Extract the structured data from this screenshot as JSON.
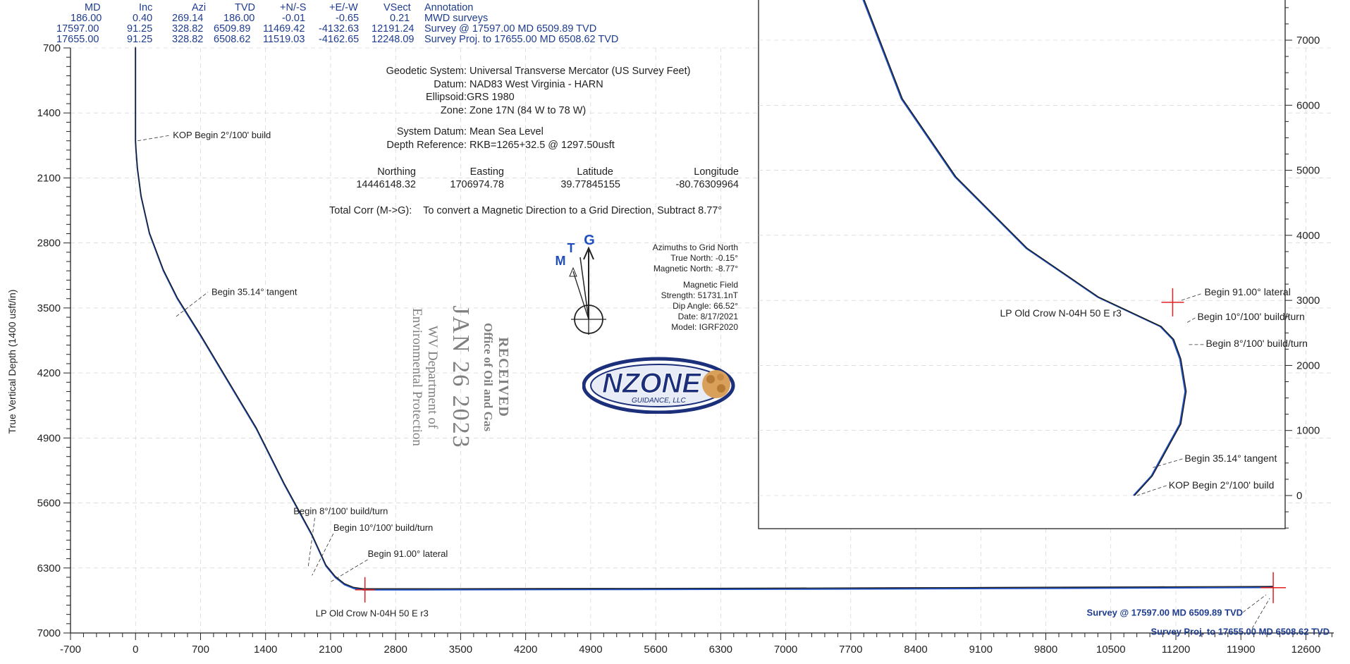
{
  "survey_table": {
    "headers": [
      "MD",
      "Inc",
      "Azi",
      "TVD",
      "+N/-S",
      "+E/-W",
      "VSect",
      "Annotation"
    ],
    "rows": [
      [
        "186.00",
        "0.40",
        "269.14",
        "186.00",
        "-0.01",
        "-0.65",
        "0.21",
        "MWD surveys"
      ],
      [
        "17597.00",
        "91.25",
        "328.82",
        "6509.89",
        "11469.42",
        "-4132.63",
        "12191.24",
        "Survey @ 17597.00 MD 6509.89 TVD"
      ],
      [
        "17655.00",
        "91.25",
        "328.82",
        "6508.62",
        "11519.03",
        "-4162.65",
        "12248.09",
        "Survey Proj. to 17655.00 MD 6508.62 TVD"
      ]
    ]
  },
  "geodetic": {
    "system_label": "Geodetic System:",
    "system": "Universal Transverse Mercator (US Survey Feet)",
    "datum_label": "Datum:",
    "datum": "NAD83 West Virginia - HARN",
    "ellipsoid_label": "Ellipsoid:",
    "ellipsoid": "GRS 1980",
    "zone_label": "Zone:",
    "zone": "Zone 17N (84 W to 78 W)",
    "sys_datum_label": "System Datum:",
    "sys_datum": "Mean Sea Level",
    "depth_ref_label": "Depth Reference:",
    "depth_ref": "RKB=1265+32.5 @ 1297.50usft"
  },
  "coords": {
    "headers": [
      "Northing",
      "Easting",
      "Latitude",
      "Longitude"
    ],
    "values": [
      "14446148.32",
      "1706974.78",
      "39.77845155",
      "-80.76309964"
    ]
  },
  "total_corr": {
    "label": "Total Corr (M->G):",
    "text": "To convert a Magnetic Direction to a Grid Direction, Subtract 8.77°"
  },
  "north_arrow": {
    "g": "G",
    "t": "T",
    "m": "M"
  },
  "azimuths": {
    "lines": [
      "Azimuths to Grid North",
      "True North: -0.15°",
      "Magnetic North: -8.77°",
      "",
      "Magnetic Field",
      "Strength: 51731.1nT",
      "Dip Angle: 66.52°",
      "Date: 8/17/2021",
      "Model: IGRF2020"
    ]
  },
  "stamp": {
    "lines": [
      "RECEIVED",
      "Office of Oil and Gas",
      "JAN 26 2023",
      "WV Department of",
      "Environmental Protection"
    ]
  },
  "logo": {
    "text": "NZONE",
    "sub": "GUIDANCE, LLC"
  },
  "colors": {
    "well_path": "#1a1a1a",
    "survey": "#1f4fbf",
    "target": "#e02020",
    "axis": "#222222",
    "grid": "#cccccc",
    "header_text": "#1f3d8f"
  },
  "chart_data": [
    {
      "type": "line",
      "title": "",
      "xlabel": "",
      "ylabel": "True Vertical Depth (1400 usft/in)",
      "xlim": [
        -700,
        12900
      ],
      "ylim": [
        7000,
        700
      ],
      "x_ticks": [
        -700,
        0,
        700,
        1400,
        2100,
        2800,
        3500,
        4200,
        4900,
        5600,
        6300,
        7000,
        7700,
        8400,
        9100,
        9800,
        10500,
        11200,
        11900,
        12600
      ],
      "y_ticks": [
        700,
        1400,
        2100,
        2800,
        3500,
        4200,
        4900,
        5600,
        6300,
        7000
      ],
      "grid": true,
      "series": [
        {
          "name": "",
          "x": [
            0,
            0,
            0,
            5,
            20,
            60,
            150,
            300,
            450,
            700,
            1000,
            1300,
            1600,
            1900,
            2050,
            2150,
            2250,
            2350,
            2450,
            3000,
            5000,
            7000,
            9000,
            11000,
            12191,
            12248
          ],
          "y": [
            700,
            1300,
            1700,
            1800,
            2000,
            2300,
            2700,
            3100,
            3400,
            3800,
            4300,
            4800,
            5400,
            5950,
            6280,
            6400,
            6480,
            6520,
            6535,
            6535,
            6532,
            6528,
            6522,
            6514,
            6510,
            6509
          ]
        }
      ],
      "markers": [
        {
          "label": "KOP Begin 2°/100' build",
          "x": 0,
          "y": 1640
        },
        {
          "label": "Begin 35.14° tangent",
          "x": 400,
          "y": 3540
        },
        {
          "label": "Begin 8°/100' build/turn",
          "x": 1930,
          "y": 6300
        },
        {
          "label": "Begin 10°/100' build/turn",
          "x": 2100,
          "y": 6400
        },
        {
          "label": "Begin 91.00° lateral",
          "x": 2350,
          "y": 6520
        },
        {
          "label": "LP Old Crow N-04H 50 E r3",
          "x": 2470,
          "y": 6535
        },
        {
          "label": "Survey @ 17597.00 MD 6509.89 TVD",
          "x": 12191,
          "y": 6510
        },
        {
          "label": "Survey Proj. to 17655.00 MD 6508.62 TVD",
          "x": 12248,
          "y": 6509
        }
      ]
    },
    {
      "type": "line",
      "title": "",
      "ylim": [
        -500,
        8000
      ],
      "y_ticks": [
        0,
        1000,
        2000,
        3000,
        4000,
        5000,
        6000,
        7000
      ],
      "xlim": [
        -5200,
        700
      ],
      "series": [
        {
          "name": "",
          "x": [
            -4130,
            -4050,
            -3600,
            -3000,
            -2200,
            -1400,
            -700,
            -560,
            -480,
            -420,
            -480,
            -800,
            -1000
          ],
          "y": [
            8000,
            7700,
            6100,
            4900,
            3800,
            3050,
            2600,
            2400,
            2100,
            1600,
            1100,
            300,
            0
          ]
        }
      ],
      "markers": [
        {
          "label": "Begin 91.00° lateral",
          "x": -560,
          "y": 3000
        },
        {
          "label": "LP Old Crow N-04H 50 E r3",
          "x": -560,
          "y": 2950
        },
        {
          "label": "Begin 10°/100' build/turn",
          "x": -480,
          "y": 2700
        },
        {
          "label": "Begin 8°/100' build/turn",
          "x": -420,
          "y": 2400
        },
        {
          "label": "Begin 35.14° tangent",
          "x": -900,
          "y": 500
        },
        {
          "label": "KOP Begin 2°/100' build",
          "x": -1000,
          "y": 0
        }
      ]
    }
  ]
}
